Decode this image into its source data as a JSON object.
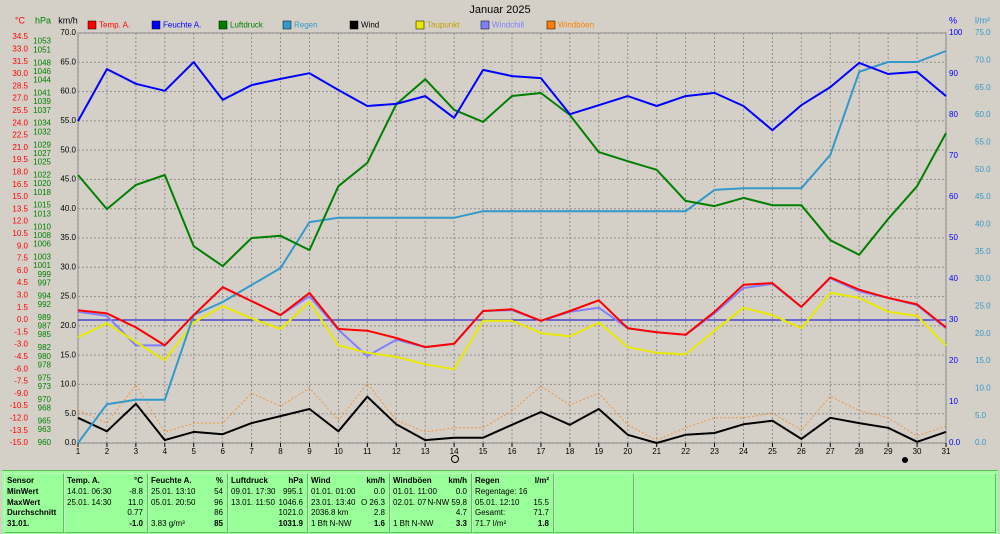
{
  "chart_data": {
    "type": "line",
    "title": "Januar 2025",
    "x": [
      1,
      2,
      3,
      4,
      5,
      6,
      7,
      8,
      9,
      10,
      11,
      12,
      13,
      14,
      15,
      16,
      17,
      18,
      19,
      20,
      21,
      22,
      23,
      24,
      25,
      26,
      27,
      28,
      29,
      30,
      31
    ],
    "xlim": [
      1,
      31
    ],
    "grid": true,
    "axes": {
      "temp": {
        "unit": "°C",
        "color": "#ff0000",
        "side": "left",
        "ylim": [
          -15,
          35
        ],
        "yticks": [
          34.5,
          {
            "value": 33,
            "label": "33.0"
          },
          31.5,
          {
            "value": 30,
            "label": "30.0"
          },
          28.5,
          {
            "value": 27,
            "label": "27.0"
          },
          25.5,
          {
            "value": 24,
            "label": "24.0"
          },
          22.5,
          {
            "value": 21,
            "label": "21.0"
          },
          19.5,
          {
            "value": 18,
            "label": "18.0"
          },
          16.5,
          {
            "value": 15,
            "label": "15.0"
          },
          13.5,
          {
            "value": 12,
            "label": "12.0"
          },
          10.5,
          {
            "value": 9,
            "label": "9.0"
          },
          7.5,
          {
            "value": 6,
            "label": "6.0"
          },
          4.5,
          {
            "value": 3,
            "label": "3.0"
          },
          1.5,
          {
            "value": 0,
            "label": "0.0"
          },
          -1.5,
          {
            "value": -3,
            "label": "-3.0"
          },
          -4.5,
          {
            "value": -6,
            "label": "-6.0"
          },
          -7.5,
          {
            "value": -9,
            "label": "-9.0"
          },
          -10.5,
          {
            "value": -12,
            "label": "-12.0"
          },
          -13.5,
          {
            "value": -15,
            "label": "-15.0"
          }
        ]
      },
      "pressure": {
        "unit": "hPa",
        "color": "#008000",
        "side": "left",
        "ylim": [
          960,
          1055
        ],
        "yticks": [
          1053,
          1051,
          1048,
          1046,
          1044,
          1041,
          1039,
          1037,
          1034,
          1032,
          1029,
          1027,
          1025,
          1022,
          1020,
          1018,
          1015,
          1013,
          1010,
          1008,
          1006,
          1003,
          1001,
          999,
          997,
          994,
          992,
          989,
          987,
          985,
          982,
          980,
          978,
          975,
          973,
          970,
          968,
          965,
          963,
          960
        ]
      },
      "speed": {
        "unit": "km/h",
        "color": "#000000",
        "side": "left",
        "ylim": [
          0,
          70
        ],
        "grid": true,
        "yticks": [
          {
            "value": 70,
            "label": "70.0"
          },
          {
            "value": 65,
            "label": "65.0"
          },
          {
            "value": 60,
            "label": "60.0"
          },
          {
            "value": 55,
            "label": "55.0"
          },
          {
            "value": 50,
            "label": "50.0"
          },
          {
            "value": 45,
            "label": "45.0"
          },
          {
            "value": 40,
            "label": "40.0"
          },
          {
            "value": 35,
            "label": "35.0"
          },
          {
            "value": 30,
            "label": "30.0"
          },
          {
            "value": 25,
            "label": "25.0"
          },
          {
            "value": 20,
            "label": "20.0"
          },
          {
            "value": 15,
            "label": "15.0"
          },
          {
            "value": 10,
            "label": "10.0"
          },
          {
            "value": 5,
            "label": "5.0"
          },
          {
            "value": 0,
            "label": "0.0"
          }
        ]
      },
      "humidity": {
        "unit": "%",
        "color": "#0000ff",
        "side": "right",
        "ylim": [
          0,
          100
        ],
        "yticks": [
          100,
          90,
          80,
          70,
          60,
          50,
          40,
          30,
          20,
          10,
          {
            "value": 0,
            "label": "0.0"
          }
        ]
      },
      "rain": {
        "unit": "l/m²",
        "color": "#3399cc",
        "side": "right",
        "ylim": [
          0,
          75
        ],
        "yticks": [
          {
            "value": 75,
            "label": "75.0"
          },
          {
            "value": 70,
            "label": "70.0"
          },
          {
            "value": 65,
            "label": "65.0"
          },
          {
            "value": 60,
            "label": "60.0"
          },
          {
            "value": 55,
            "label": "55.0"
          },
          {
            "value": 50,
            "label": "50.0"
          },
          {
            "value": 45,
            "label": "45.0"
          },
          {
            "value": 40,
            "label": "40.0"
          },
          {
            "value": 35,
            "label": "35.0"
          },
          {
            "value": 30,
            "label": "30.0"
          },
          {
            "value": 25,
            "label": "25.0"
          },
          {
            "value": 20,
            "label": "20.0"
          },
          {
            "value": 15,
            "label": "15.0"
          },
          {
            "value": 10,
            "label": "10.0"
          },
          {
            "value": 5,
            "label": "5.0"
          },
          {
            "value": 0,
            "label": "0.0"
          }
        ]
      }
    },
    "series": [
      {
        "name": "Temp. A.",
        "color": "#ff0000",
        "axis": "temp",
        "values": [
          1.2,
          0.8,
          -0.9,
          -3.1,
          0.6,
          4.0,
          2.3,
          0.6,
          3.3,
          -1.1,
          -1.3,
          -2.2,
          -3.3,
          -2.9,
          1.1,
          1.3,
          -0.1,
          1.1,
          2.4,
          -1.0,
          -1.5,
          -1.8,
          1.0,
          4.3,
          4.5,
          1.6,
          5.2,
          3.7,
          2.7,
          1.9,
          -0.9
        ]
      },
      {
        "name": "Feuchte A.",
        "color": "#0000ff",
        "axis": "humidity",
        "values": [
          78.5,
          91.2,
          87.6,
          85.9,
          92.9,
          83.7,
          87.3,
          88.8,
          90.2,
          86.1,
          82.2,
          82.7,
          84.6,
          79.3,
          91.0,
          89.5,
          89.0,
          80.2,
          82.4,
          84.6,
          82.2,
          84.6,
          85.4,
          82.2,
          76.3,
          82.4,
          86.8,
          92.7,
          90.0,
          90.5,
          84.6
        ]
      },
      {
        "name": "Luftdruck",
        "color": "#008000",
        "axis": "pressure",
        "values": [
          1022.1,
          1014.2,
          1019.8,
          1022.1,
          1005.6,
          1001.0,
          1007.5,
          1008.0,
          1004.7,
          1019.5,
          1024.9,
          1038.5,
          1044.3,
          1037.2,
          1034.4,
          1040.4,
          1041.1,
          1036.0,
          1027.4,
          1025.3,
          1023.3,
          1016.1,
          1014.9,
          1016.8,
          1015.1,
          1015.1,
          1007.0,
          1003.6,
          1011.9,
          1019.5,
          1031.8
        ]
      },
      {
        "name": "Regen",
        "color": "#3399cc",
        "axis": "rain",
        "values": [
          0,
          7.1,
          7.9,
          7.9,
          23.4,
          25.8,
          28.9,
          32.0,
          40.4,
          41.2,
          41.2,
          41.2,
          41.2,
          41.2,
          42.4,
          42.4,
          42.4,
          42.4,
          42.4,
          42.4,
          42.4,
          42.4,
          46.3,
          46.6,
          46.6,
          46.6,
          52.7,
          67.9,
          69.7,
          69.7,
          71.7
        ]
      },
      {
        "name": "Wind",
        "color": "#000000",
        "axis": "speed",
        "values": [
          4.3,
          2.0,
          6.7,
          0.5,
          1.9,
          1.5,
          3.4,
          4.6,
          5.8,
          2.0,
          7.9,
          3.2,
          0.5,
          0.9,
          0.9,
          3.1,
          5.3,
          3.1,
          5.8,
          1.4,
          0,
          1.4,
          1.7,
          3.2,
          3.8,
          0.7,
          4.3,
          3.4,
          2.6,
          0.2,
          1.9
        ]
      },
      {
        "name": "Taupunkt",
        "color": "#e8e800",
        "axis": "temp",
        "values": [
          -2.1,
          -0.4,
          -2.7,
          -4.9,
          -0.3,
          1.7,
          0.2,
          -1.1,
          2.2,
          -3.1,
          -4.0,
          -4.5,
          -5.4,
          -6.0,
          -0.1,
          -0.1,
          -1.6,
          -2.0,
          -0.3,
          -3.3,
          -4.0,
          -4.2,
          -1.3,
          1.5,
          0.6,
          -1.0,
          3.3,
          2.7,
          1.0,
          0.5,
          -3.1
        ]
      },
      {
        "name": "Windchill",
        "color": "#8080ff",
        "axis": "temp",
        "values": [
          1.0,
          0.5,
          -3.1,
          -3.1,
          0.6,
          4.0,
          2.3,
          0.6,
          2.9,
          -1.2,
          -4.4,
          -2.4,
          -3.3,
          -2.9,
          1.1,
          1.2,
          -0.1,
          1.0,
          1.5,
          -1.0,
          -1.5,
          -1.8,
          0.8,
          3.9,
          4.4,
          1.6,
          5.1,
          3.5,
          2.7,
          1.8,
          -1.0
        ]
      },
      {
        "name": "Windböen",
        "color": "#ff8000",
        "axis": "speed",
        "style": "dotted",
        "values": [
          5.6,
          3.4,
          9.9,
          1.9,
          3.4,
          3.4,
          8.5,
          6.3,
          9.4,
          3.9,
          10.2,
          3.9,
          1.9,
          2.6,
          2.6,
          5.5,
          9.7,
          6.5,
          8.5,
          3.1,
          0.5,
          2.6,
          4.3,
          4.3,
          5.1,
          2.2,
          8.0,
          5.5,
          4.3,
          1.2,
          2.9
        ]
      }
    ]
  },
  "stats": {
    "row_labels": [
      "Sensor",
      "MinWert",
      "MaxWert",
      "Durchschnitt",
      "31.01."
    ],
    "columns": [
      {
        "rows": [
          {
            "left": "Temp. A.",
            "right": "°C"
          },
          {
            "left": "14.01. 06:30",
            "right": "-8.8"
          },
          {
            "left": "25.01. 14:30",
            "right": "11.0"
          },
          {
            "right": "0.77"
          },
          {
            "right": "-1.0"
          }
        ]
      },
      {
        "rows": [
          {
            "left": "Feuchte A.",
            "right": "%"
          },
          {
            "left": "25.01. 13:10",
            "right": "54"
          },
          {
            "left": "05.01. 20:50",
            "right": "96"
          },
          {
            "right": "86"
          },
          {
            "left": "3.83 g/m³",
            "right": "85"
          }
        ]
      },
      {
        "rows": [
          {
            "left": "Luftdruck",
            "right": "hPa"
          },
          {
            "left": "09.01. 17:30",
            "right": "995.1"
          },
          {
            "left": "13.01. 11:50",
            "right": "1046.6"
          },
          {
            "right": "1021.0"
          },
          {
            "right": "1031.9"
          }
        ]
      },
      {
        "rows": [
          {
            "left": "Wind",
            "right": "km/h"
          },
          {
            "left": "01.01. 01:00",
            "right": "0.0"
          },
          {
            "left": "23.01. 13:40",
            "right": "O 26.3"
          },
          {
            "left": "2036.8 km",
            "right": "2.8"
          },
          {
            "left": "1 Bft N-NW",
            "right": "1.6"
          }
        ]
      },
      {
        "rows": [
          {
            "left": "Windböen",
            "right": "km/h"
          },
          {
            "left": "01.01. 11:00",
            "right": "0.0"
          },
          {
            "left": "02.01. 07",
            "right": "N-NW 59.8"
          },
          {
            "right": "4.7"
          },
          {
            "left": "1 Bft N-NW",
            "right": "3.3"
          }
        ]
      },
      {
        "rows": [
          {
            "left": "Regen",
            "right": "l/m²"
          },
          {
            "left": "Regentage: 16"
          },
          {
            "left": "05.01. 12:10",
            "right": "15.5"
          },
          {
            "left": "Gesamt:",
            "right": "71.7"
          },
          {
            "left": "71.7 l/m²",
            "right": "1.8"
          }
        ]
      }
    ]
  }
}
